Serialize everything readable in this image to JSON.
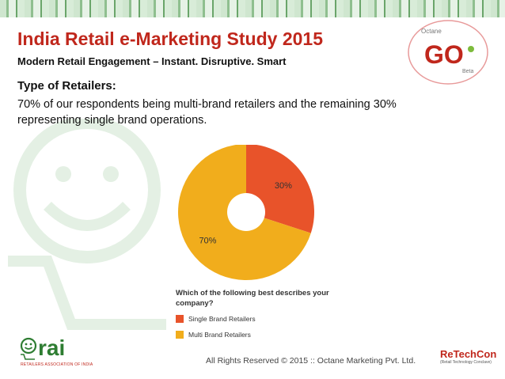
{
  "header": {
    "title": "India Retail e-Marketing Study 2015",
    "subtitle": "Modern Retail Engagement – Instant. Disruptive. Smart",
    "logo": {
      "top_text": "Octane",
      "main_text": "GO",
      "tag": "Beta"
    }
  },
  "content": {
    "heading": "Type of Retailers:",
    "paragraph": "70% of our respondents being multi-brand retailers and the remaining 30% representing single brand operations."
  },
  "chart_data": {
    "type": "pie",
    "donut": true,
    "question": "Which of the following best describes your company?",
    "slices": [
      {
        "label": "Single Brand Retailers",
        "value": 30,
        "display": "30%",
        "color": "#e8532a"
      },
      {
        "label": "Multi Brand Retailers",
        "value": 70,
        "display": "70%",
        "color": "#f1ad1c"
      }
    ],
    "legend_position": "bottom"
  },
  "footer": {
    "copyright": "All Rights Reserved © 2015 :: Octane Marketing Pvt. Ltd.",
    "rai_logo": {
      "name": "rai",
      "subtitle": "RETAILERS ASSOCIATION OF INDIA"
    },
    "retechcon_logo": {
      "name": "ReTechCon",
      "subtitle": "(Retail Technology Conclave)"
    }
  }
}
